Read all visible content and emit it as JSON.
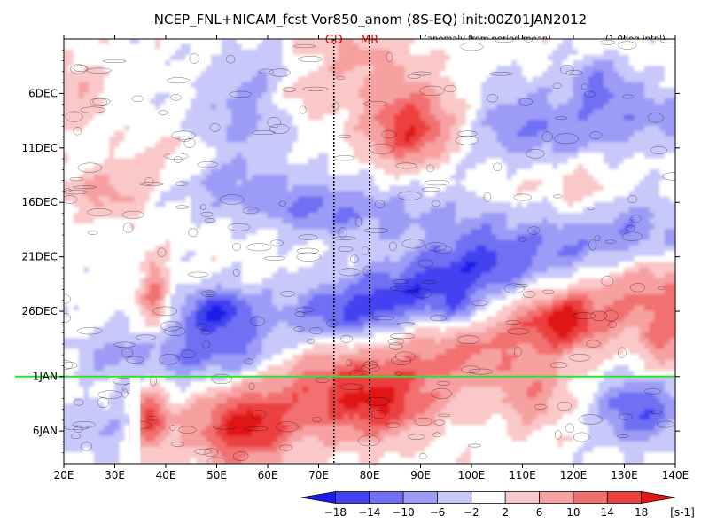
{
  "chart_data": {
    "type": "heatmap",
    "title": "NCEP_FNL+NICAM_fcst Vor850_anom (8S-EQ) init:00Z01JAN2012",
    "subtitle_left": "(anomaly from period mean)",
    "subtitle_right": "(1.0deg intpl)",
    "x_axis": {
      "range_deg_e": [
        20,
        140
      ],
      "ticks": [
        20,
        30,
        40,
        50,
        60,
        70,
        80,
        90,
        100,
        110,
        120,
        130,
        140
      ],
      "tick_labels": [
        "20E",
        "30E",
        "40E",
        "50E",
        "60E",
        "70E",
        "80E",
        "90E",
        "100E",
        "110E",
        "120E",
        "130E",
        "140E"
      ]
    },
    "y_axis": {
      "range": [
        "1DEC2011",
        "9JAN2012"
      ],
      "ticks_day_of_dec": [
        6,
        11,
        16,
        21,
        26,
        32,
        37
      ],
      "tick_labels": [
        "6DEC",
        "11DEC",
        "16DEC",
        "21DEC",
        "26DEC",
        "1JAN",
        "6JAN"
      ],
      "direction": "time increases downward"
    },
    "reference_lines": [
      {
        "lon": 73,
        "label": "GD",
        "color": "#e01010"
      },
      {
        "lon": 80,
        "label": "MR",
        "color": "#e01010"
      }
    ],
    "forecast_init_line": {
      "date_day_of_dec": 32,
      "label": "1JAN",
      "color": "#30e030"
    },
    "missing_strip_lon": [
      33,
      35
    ],
    "missing_strip_after_day_of_dec": 32,
    "colorbar": {
      "levels": [
        -18,
        -14,
        -10,
        -6,
        -2,
        2,
        6,
        10,
        14,
        18
      ],
      "level_labels": [
        "−18",
        "−14",
        "−10",
        "−6",
        "−2",
        "2",
        "6",
        "10",
        "14",
        "18"
      ],
      "colors": [
        "#1c1ce8",
        "#4242f0",
        "#6f6ff4",
        "#9c9cf6",
        "#c8c8fa",
        "#ffffff",
        "#fac8c8",
        "#f6a0a0",
        "#f27070",
        "#ec4040",
        "#e01818"
      ],
      "units": "[s-1]"
    },
    "features": [
      {
        "type": "red band",
        "from": [
          44,
          12
        ],
        "to": [
          30,
          15
        ]
      },
      {
        "type": "blue band",
        "from": [
          40,
          33
        ],
        "to": [
          130,
          20
        ]
      },
      {
        "type": "red band",
        "from": [
          55,
          36
        ],
        "to": [
          135,
          24
        ]
      },
      {
        "type": "red blob",
        "lon": 88,
        "day": 10
      },
      {
        "type": "blue blob",
        "lon": 50,
        "day": 26
      },
      {
        "type": "red blob",
        "lon": 65,
        "day": 29
      },
      {
        "type": "blue blob",
        "lon": 133,
        "day": 35
      }
    ]
  }
}
